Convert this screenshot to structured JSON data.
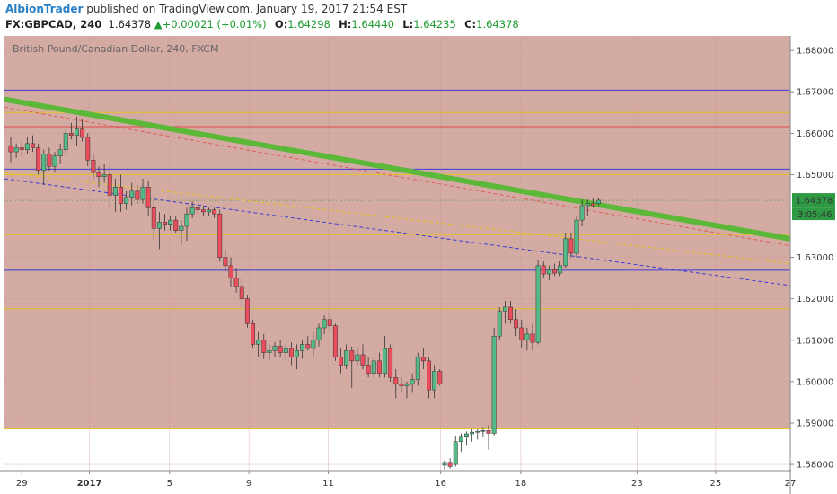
{
  "header": {
    "author": "AlbionTrader",
    "published_text": "published on TradingView.com, January 19, 2017 21:54 EST",
    "symbol": "FX:GBPCAD, 240",
    "last": "1.64378",
    "change": "+0.00021 (+0.01%)",
    "o_label": "O:",
    "o_value": "1.64298",
    "h_label": "H:",
    "h_value": "1.64440",
    "l_label": "L:",
    "l_value": "1.64235",
    "c_label": "C:",
    "c_value": "1.64378"
  },
  "chart_data": {
    "type": "candlestick",
    "title": "British Pound/Canadian Dollar, 240, FXCM",
    "ylim": [
      1.5785,
      1.6835
    ],
    "y_ticks": [
      "1.68000",
      "1.67000",
      "1.66000",
      "1.65000",
      "1.63000",
      "1.62000",
      "1.61000",
      "1.60000",
      "1.59000",
      "1.58000"
    ],
    "y_tick_values": [
      1.68,
      1.67,
      1.66,
      1.65,
      1.63,
      1.62,
      1.61,
      1.6,
      1.59,
      1.58
    ],
    "x_range": [
      0,
      100
    ],
    "x_ticks": [
      {
        "label": "29",
        "x": 2.2
      },
      {
        "label": "2017",
        "x": 10.8
      },
      {
        "label": "5",
        "x": 21.0
      },
      {
        "label": "9",
        "x": 31.1
      },
      {
        "label": "11",
        "x": 41.2
      },
      {
        "label": "16",
        "x": 55.5
      },
      {
        "label": "18",
        "x": 65.7
      },
      {
        "label": "23",
        "x": 80.5
      },
      {
        "label": "25",
        "x": 90.5
      },
      {
        "label": "27",
        "x": 100.0
      }
    ],
    "price_label": "1.64378",
    "countdown_label": "3:05:46",
    "current_price": 1.64378,
    "shaded_zone": {
      "from": 1.5886,
      "to": 1.6835,
      "color": "#d4aba3"
    },
    "horizontal_lines": [
      {
        "y": 1.6704,
        "color": "#3b3bd6"
      },
      {
        "y": 1.665,
        "color": "#e6c324"
      },
      {
        "y": 1.6616,
        "color": "#e04848"
      },
      {
        "y": 1.6513,
        "color": "#3b3bd6"
      },
      {
        "y": 1.65,
        "color": "#e6c324"
      },
      {
        "y": 1.6355,
        "color": "#e6c324"
      },
      {
        "y": 1.6269,
        "color": "#3b3bd6"
      },
      {
        "y": 1.6176,
        "color": "#e6c324"
      },
      {
        "y": 1.5886,
        "color": "#e6c324"
      }
    ],
    "trendlines": [
      {
        "x1": 0.0,
        "y1": 1.6682,
        "x2": 100.0,
        "y2": 1.6345,
        "color": "#5cb838",
        "style": "solid",
        "width": 6
      },
      {
        "x1": 0.0,
        "y1": 1.6663,
        "x2": 100.0,
        "y2": 1.6328,
        "color": "#e05a5a",
        "style": "dashed",
        "width": 1
      },
      {
        "x1": 0.0,
        "y1": 1.6505,
        "x2": 100.0,
        "y2": 1.6285,
        "color": "#e6c324",
        "style": "dashed",
        "width": 1
      },
      {
        "x1": 0.0,
        "y1": 1.649,
        "x2": 100.0,
        "y2": 1.6232,
        "color": "#3b3bd6",
        "style": "dashed",
        "width": 1
      }
    ],
    "candles": [
      {
        "x": 0.8,
        "o": 1.657,
        "h": 1.659,
        "l": 1.653,
        "c": 1.6555
      },
      {
        "x": 1.5,
        "o": 1.6555,
        "h": 1.6575,
        "l": 1.654,
        "c": 1.6565
      },
      {
        "x": 2.2,
        "o": 1.6565,
        "h": 1.658,
        "l": 1.6545,
        "c": 1.656
      },
      {
        "x": 2.9,
        "o": 1.656,
        "h": 1.659,
        "l": 1.655,
        "c": 1.6575
      },
      {
        "x": 3.6,
        "o": 1.6575,
        "h": 1.6595,
        "l": 1.6555,
        "c": 1.6565
      },
      {
        "x": 4.3,
        "o": 1.6565,
        "h": 1.6575,
        "l": 1.65,
        "c": 1.651
      },
      {
        "x": 5.0,
        "o": 1.651,
        "h": 1.656,
        "l": 1.6475,
        "c": 1.655
      },
      {
        "x": 5.7,
        "o": 1.655,
        "h": 1.6565,
        "l": 1.651,
        "c": 1.652
      },
      {
        "x": 6.4,
        "o": 1.652,
        "h": 1.6555,
        "l": 1.6505,
        "c": 1.6545
      },
      {
        "x": 7.1,
        "o": 1.6545,
        "h": 1.6575,
        "l": 1.6525,
        "c": 1.656
      },
      {
        "x": 7.8,
        "o": 1.656,
        "h": 1.661,
        "l": 1.6545,
        "c": 1.66
      },
      {
        "x": 8.5,
        "o": 1.66,
        "h": 1.6625,
        "l": 1.6585,
        "c": 1.6595
      },
      {
        "x": 9.2,
        "o": 1.6595,
        "h": 1.664,
        "l": 1.657,
        "c": 1.661
      },
      {
        "x": 9.9,
        "o": 1.661,
        "h": 1.6635,
        "l": 1.658,
        "c": 1.659
      },
      {
        "x": 10.6,
        "o": 1.659,
        "h": 1.66,
        "l": 1.652,
        "c": 1.6535
      },
      {
        "x": 11.3,
        "o": 1.6535,
        "h": 1.655,
        "l": 1.649,
        "c": 1.6505
      },
      {
        "x": 12.0,
        "o": 1.6505,
        "h": 1.652,
        "l": 1.647,
        "c": 1.6495
      },
      {
        "x": 12.7,
        "o": 1.6495,
        "h": 1.6525,
        "l": 1.648,
        "c": 1.65
      },
      {
        "x": 13.4,
        "o": 1.65,
        "h": 1.653,
        "l": 1.642,
        "c": 1.645
      },
      {
        "x": 14.1,
        "o": 1.645,
        "h": 1.649,
        "l": 1.641,
        "c": 1.647
      },
      {
        "x": 14.8,
        "o": 1.647,
        "h": 1.65,
        "l": 1.641,
        "c": 1.643
      },
      {
        "x": 15.5,
        "o": 1.643,
        "h": 1.646,
        "l": 1.6415,
        "c": 1.6445
      },
      {
        "x": 16.2,
        "o": 1.6445,
        "h": 1.648,
        "l": 1.6425,
        "c": 1.646
      },
      {
        "x": 16.9,
        "o": 1.646,
        "h": 1.6475,
        "l": 1.643,
        "c": 1.644
      },
      {
        "x": 17.6,
        "o": 1.644,
        "h": 1.649,
        "l": 1.643,
        "c": 1.647
      },
      {
        "x": 18.3,
        "o": 1.647,
        "h": 1.6485,
        "l": 1.64,
        "c": 1.642
      },
      {
        "x": 19.0,
        "o": 1.642,
        "h": 1.6435,
        "l": 1.634,
        "c": 1.637
      },
      {
        "x": 19.7,
        "o": 1.637,
        "h": 1.641,
        "l": 1.632,
        "c": 1.6385
      },
      {
        "x": 20.4,
        "o": 1.6385,
        "h": 1.6405,
        "l": 1.6365,
        "c": 1.638
      },
      {
        "x": 21.1,
        "o": 1.638,
        "h": 1.64,
        "l": 1.6365,
        "c": 1.639
      },
      {
        "x": 21.8,
        "o": 1.639,
        "h": 1.64,
        "l": 1.636,
        "c": 1.6365
      },
      {
        "x": 22.5,
        "o": 1.6365,
        "h": 1.639,
        "l": 1.633,
        "c": 1.6375
      },
      {
        "x": 23.2,
        "o": 1.6375,
        "h": 1.642,
        "l": 1.634,
        "c": 1.6405
      },
      {
        "x": 23.9,
        "o": 1.6405,
        "h": 1.6435,
        "l": 1.6395,
        "c": 1.642
      },
      {
        "x": 24.6,
        "o": 1.642,
        "h": 1.643,
        "l": 1.6405,
        "c": 1.6415
      },
      {
        "x": 25.3,
        "o": 1.6415,
        "h": 1.6425,
        "l": 1.64,
        "c": 1.641
      },
      {
        "x": 26.0,
        "o": 1.641,
        "h": 1.642,
        "l": 1.64,
        "c": 1.6415
      },
      {
        "x": 26.7,
        "o": 1.6415,
        "h": 1.642,
        "l": 1.6395,
        "c": 1.6405
      },
      {
        "x": 27.4,
        "o": 1.6405,
        "h": 1.6415,
        "l": 1.629,
        "c": 1.63
      },
      {
        "x": 28.1,
        "o": 1.63,
        "h": 1.632,
        "l": 1.6265,
        "c": 1.628
      },
      {
        "x": 28.8,
        "o": 1.628,
        "h": 1.63,
        "l": 1.623,
        "c": 1.625
      },
      {
        "x": 29.5,
        "o": 1.625,
        "h": 1.6275,
        "l": 1.6215,
        "c": 1.623
      },
      {
        "x": 30.2,
        "o": 1.623,
        "h": 1.625,
        "l": 1.618,
        "c": 1.62
      },
      {
        "x": 30.9,
        "o": 1.62,
        "h": 1.621,
        "l": 1.613,
        "c": 1.614
      },
      {
        "x": 31.6,
        "o": 1.614,
        "h": 1.615,
        "l": 1.608,
        "c": 1.609
      },
      {
        "x": 32.3,
        "o": 1.609,
        "h": 1.612,
        "l": 1.606,
        "c": 1.61
      },
      {
        "x": 33.0,
        "o": 1.61,
        "h": 1.6115,
        "l": 1.6055,
        "c": 1.607
      },
      {
        "x": 33.7,
        "o": 1.607,
        "h": 1.609,
        "l": 1.605,
        "c": 1.6075
      },
      {
        "x": 34.4,
        "o": 1.6075,
        "h": 1.6095,
        "l": 1.606,
        "c": 1.6085
      },
      {
        "x": 35.1,
        "o": 1.6085,
        "h": 1.61,
        "l": 1.606,
        "c": 1.607
      },
      {
        "x": 35.8,
        "o": 1.607,
        "h": 1.609,
        "l": 1.605,
        "c": 1.608
      },
      {
        "x": 36.5,
        "o": 1.608,
        "h": 1.6095,
        "l": 1.604,
        "c": 1.606
      },
      {
        "x": 37.2,
        "o": 1.606,
        "h": 1.609,
        "l": 1.603,
        "c": 1.6075
      },
      {
        "x": 37.9,
        "o": 1.6075,
        "h": 1.61,
        "l": 1.6055,
        "c": 1.609
      },
      {
        "x": 38.6,
        "o": 1.609,
        "h": 1.611,
        "l": 1.6075,
        "c": 1.608
      },
      {
        "x": 39.3,
        "o": 1.608,
        "h": 1.612,
        "l": 1.606,
        "c": 1.61
      },
      {
        "x": 40.0,
        "o": 1.61,
        "h": 1.614,
        "l": 1.6085,
        "c": 1.613
      },
      {
        "x": 40.7,
        "o": 1.613,
        "h": 1.616,
        "l": 1.6115,
        "c": 1.615
      },
      {
        "x": 41.4,
        "o": 1.615,
        "h": 1.6165,
        "l": 1.6125,
        "c": 1.6135
      },
      {
        "x": 42.1,
        "o": 1.6135,
        "h": 1.614,
        "l": 1.605,
        "c": 1.606
      },
      {
        "x": 42.8,
        "o": 1.606,
        "h": 1.608,
        "l": 1.602,
        "c": 1.604
      },
      {
        "x": 43.5,
        "o": 1.604,
        "h": 1.609,
        "l": 1.603,
        "c": 1.6075
      },
      {
        "x": 44.2,
        "o": 1.6075,
        "h": 1.6085,
        "l": 1.5985,
        "c": 1.605
      },
      {
        "x": 44.9,
        "o": 1.605,
        "h": 1.608,
        "l": 1.604,
        "c": 1.6065
      },
      {
        "x": 45.6,
        "o": 1.6065,
        "h": 1.609,
        "l": 1.603,
        "c": 1.604
      },
      {
        "x": 46.3,
        "o": 1.604,
        "h": 1.606,
        "l": 1.601,
        "c": 1.602
      },
      {
        "x": 47.0,
        "o": 1.602,
        "h": 1.606,
        "l": 1.601,
        "c": 1.605
      },
      {
        "x": 47.7,
        "o": 1.605,
        "h": 1.607,
        "l": 1.601,
        "c": 1.602
      },
      {
        "x": 48.4,
        "o": 1.602,
        "h": 1.611,
        "l": 1.601,
        "c": 1.608
      },
      {
        "x": 49.1,
        "o": 1.608,
        "h": 1.609,
        "l": 1.6,
        "c": 1.601
      },
      {
        "x": 49.8,
        "o": 1.601,
        "h": 1.603,
        "l": 1.596,
        "c": 1.5995
      },
      {
        "x": 50.5,
        "o": 1.5995,
        "h": 1.601,
        "l": 1.5975,
        "c": 1.599
      },
      {
        "x": 51.2,
        "o": 1.599,
        "h": 1.6,
        "l": 1.596,
        "c": 1.5995
      },
      {
        "x": 51.9,
        "o": 1.5995,
        "h": 1.602,
        "l": 1.5975,
        "c": 1.6005
      },
      {
        "x": 52.6,
        "o": 1.6005,
        "h": 1.607,
        "l": 1.599,
        "c": 1.606
      },
      {
        "x": 53.3,
        "o": 1.606,
        "h": 1.608,
        "l": 1.603,
        "c": 1.605
      },
      {
        "x": 54.0,
        "o": 1.605,
        "h": 1.606,
        "l": 1.596,
        "c": 1.598
      },
      {
        "x": 54.7,
        "o": 1.598,
        "h": 1.604,
        "l": 1.596,
        "c": 1.6025
      },
      {
        "x": 55.4,
        "o": 1.6025,
        "h": 1.603,
        "l": 1.599,
        "c": 1.5995
      },
      {
        "x": 56.0,
        "o": 1.5798,
        "h": 1.581,
        "l": 1.5788,
        "c": 1.5805
      },
      {
        "x": 56.7,
        "o": 1.5805,
        "h": 1.5815,
        "l": 1.579,
        "c": 1.5795
      },
      {
        "x": 57.4,
        "o": 1.58,
        "h": 1.587,
        "l": 1.5795,
        "c": 1.5855
      },
      {
        "x": 58.1,
        "o": 1.5855,
        "h": 1.5875,
        "l": 1.583,
        "c": 1.5868
      },
      {
        "x": 58.8,
        "o": 1.5868,
        "h": 1.588,
        "l": 1.5845,
        "c": 1.5874
      },
      {
        "x": 59.5,
        "o": 1.5874,
        "h": 1.5885,
        "l": 1.5855,
        "c": 1.5878
      },
      {
        "x": 60.2,
        "o": 1.5878,
        "h": 1.5885,
        "l": 1.586,
        "c": 1.588
      },
      {
        "x": 60.9,
        "o": 1.588,
        "h": 1.589,
        "l": 1.5865,
        "c": 1.5882
      },
      {
        "x": 61.6,
        "o": 1.5882,
        "h": 1.5895,
        "l": 1.5835,
        "c": 1.5875
      },
      {
        "x": 62.3,
        "o": 1.5875,
        "h": 1.613,
        "l": 1.587,
        "c": 1.611
      },
      {
        "x": 63.0,
        "o": 1.611,
        "h": 1.618,
        "l": 1.61,
        "c": 1.617
      },
      {
        "x": 63.7,
        "o": 1.617,
        "h": 1.6195,
        "l": 1.614,
        "c": 1.618
      },
      {
        "x": 64.4,
        "o": 1.618,
        "h": 1.6195,
        "l": 1.614,
        "c": 1.615
      },
      {
        "x": 65.1,
        "o": 1.615,
        "h": 1.6175,
        "l": 1.611,
        "c": 1.613
      },
      {
        "x": 65.8,
        "o": 1.613,
        "h": 1.615,
        "l": 1.608,
        "c": 1.61
      },
      {
        "x": 66.5,
        "o": 1.61,
        "h": 1.613,
        "l": 1.6075,
        "c": 1.6115
      },
      {
        "x": 67.2,
        "o": 1.6115,
        "h": 1.614,
        "l": 1.6075,
        "c": 1.6095
      },
      {
        "x": 67.9,
        "o": 1.6095,
        "h": 1.6295,
        "l": 1.609,
        "c": 1.628
      },
      {
        "x": 68.6,
        "o": 1.628,
        "h": 1.629,
        "l": 1.625,
        "c": 1.626
      },
      {
        "x": 69.3,
        "o": 1.626,
        "h": 1.628,
        "l": 1.6245,
        "c": 1.627
      },
      {
        "x": 70.0,
        "o": 1.627,
        "h": 1.6285,
        "l": 1.6255,
        "c": 1.6262
      },
      {
        "x": 70.7,
        "o": 1.6262,
        "h": 1.629,
        "l": 1.6255,
        "c": 1.628
      },
      {
        "x": 71.4,
        "o": 1.628,
        "h": 1.636,
        "l": 1.6275,
        "c": 1.6345
      },
      {
        "x": 72.1,
        "o": 1.6345,
        "h": 1.636,
        "l": 1.63,
        "c": 1.631
      },
      {
        "x": 72.8,
        "o": 1.631,
        "h": 1.64,
        "l": 1.63,
        "c": 1.639
      },
      {
        "x": 73.5,
        "o": 1.639,
        "h": 1.644,
        "l": 1.6375,
        "c": 1.6425
      },
      {
        "x": 74.2,
        "o": 1.6425,
        "h": 1.644,
        "l": 1.64,
        "c": 1.643
      },
      {
        "x": 74.9,
        "o": 1.643,
        "h": 1.6444,
        "l": 1.642,
        "c": 1.6425
      },
      {
        "x": 75.6,
        "o": 1.643,
        "h": 1.6444,
        "l": 1.6424,
        "c": 1.6438
      }
    ]
  }
}
